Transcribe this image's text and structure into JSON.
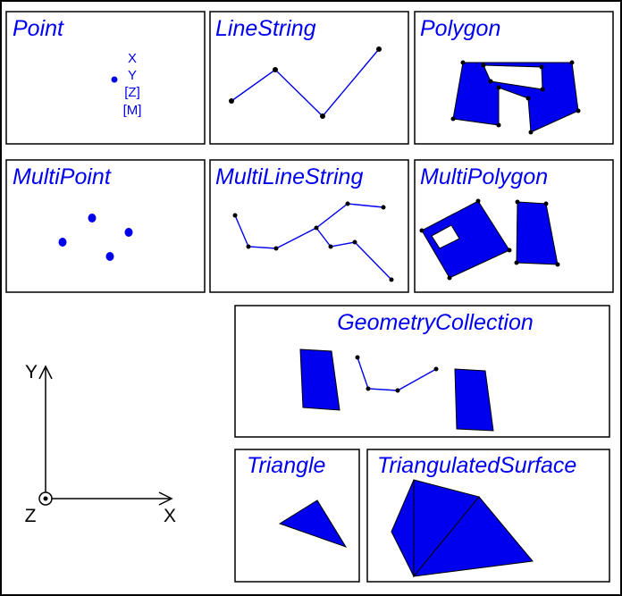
{
  "panels": {
    "point": "Point",
    "linestring": "LineString",
    "polygon": "Polygon",
    "multipoint": "MultiPoint",
    "multilinestring": "MultiLineString",
    "multipolygon": "MultiPolygon",
    "geometrycollection": "GeometryCollection",
    "triangle": "Triangle",
    "triangulatedsurface": "TriangulatedSurface"
  },
  "point_coords": [
    "X",
    "Y",
    "[Z]",
    "[M]"
  ],
  "axes": {
    "x": "X",
    "y": "Y",
    "z": "Z"
  },
  "colors": {
    "geometry": "#0000ee",
    "label": "#0000ee",
    "outline": "#000000"
  }
}
